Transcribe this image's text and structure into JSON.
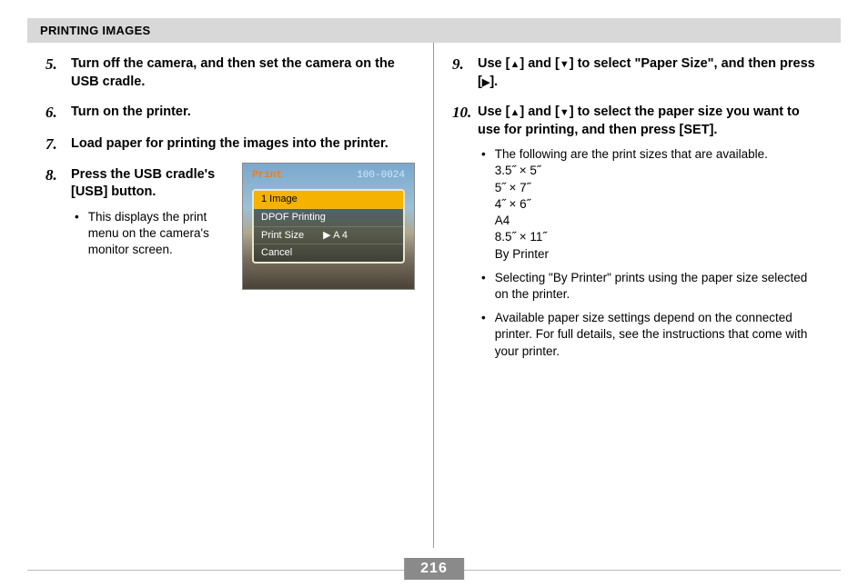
{
  "header": {
    "title": "PRINTING IMAGES"
  },
  "pageNumber": "216",
  "symbols": {
    "up": "▲",
    "down": "▼",
    "right": "▶"
  },
  "left": {
    "steps": [
      {
        "num": "5.",
        "title": "Turn off the camera, and then set the camera on the USB cradle."
      },
      {
        "num": "6.",
        "title": "Turn on the printer."
      },
      {
        "num": "7.",
        "title": "Load paper for printing the images into the printer."
      },
      {
        "num": "8.",
        "title": "Press the USB cradle's [USB] button.",
        "bullets": [
          "This displays the print menu on the camera's monitor screen."
        ]
      }
    ]
  },
  "right": {
    "steps": [
      {
        "num": "9.",
        "title_parts": [
          "Use [",
          "up",
          "] and [",
          "down",
          "] to select \"Paper Size\", and then press [",
          "right",
          "]."
        ]
      },
      {
        "num": "10.",
        "title_parts": [
          "Use [",
          "up",
          "] and [",
          "down",
          "] to select the paper size you want to use for printing, and then press [SET]."
        ],
        "bullets": [
          {
            "text": "The following are the print sizes that are available.",
            "sizes": "3.5˝ × 5˝\n5˝ × 7˝\n4˝ × 6˝\nA4\n8.5˝ × 11˝\nBy Printer"
          },
          {
            "text": "Selecting \"By Printer\" prints using the paper size selected on the printer."
          },
          {
            "text": "Available paper size settings depend on the connected printer. For full details, see the instructions that come with your printer."
          }
        ]
      }
    ]
  },
  "printMenu": {
    "label": "Print",
    "id": "100-0024",
    "rows": [
      {
        "text": "1 Image",
        "highlight": true
      },
      {
        "text": "DPOF Printing"
      },
      {
        "text": "Print Size",
        "value": "A 4",
        "arrow": true
      },
      {
        "text": "Cancel"
      }
    ],
    "colors": {
      "highlight_bg": "#f5b300",
      "label_color": "#ff7a00",
      "id_color": "#cfe8ff",
      "frame_border": "#e8e8d0"
    }
  },
  "colors": {
    "header_bg": "#d8d8d8",
    "page_number_bg": "#8a8a8a",
    "page_number_fg": "#ffffff",
    "rule": "#bbbbbb"
  }
}
